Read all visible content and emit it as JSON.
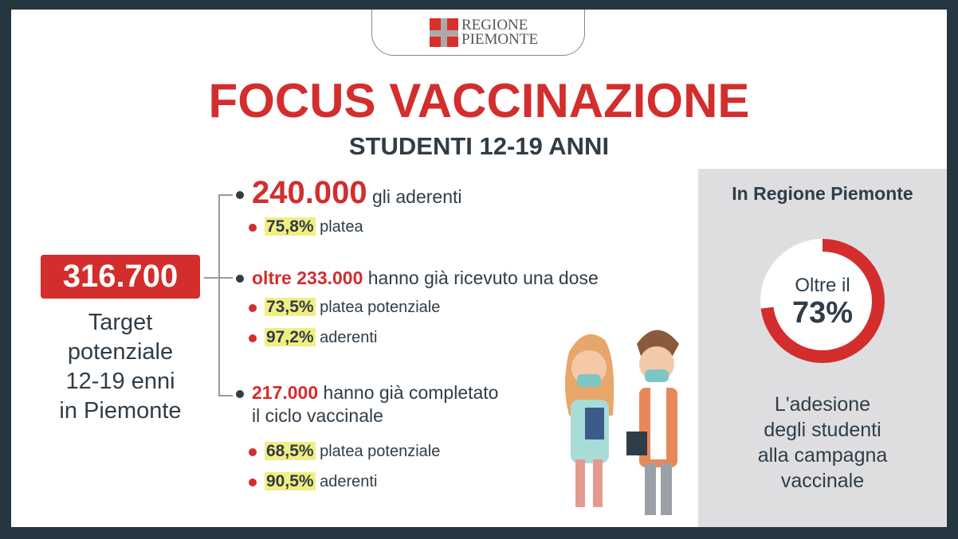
{
  "logo": {
    "line1": "REGIONE",
    "line2": "PIEMONTE"
  },
  "title": "FOCUS VACCINAZIONE",
  "subtitle": "STUDENTI 12-19 ANNI",
  "target": {
    "value": "316.700",
    "label": [
      "Target",
      "potenziale",
      "12-19 enni",
      "in Piemonte"
    ]
  },
  "items": [
    {
      "value": "240.000",
      "text": "gli aderenti",
      "stats": [
        {
          "pct": "75,8%",
          "label": "platea"
        }
      ]
    },
    {
      "value": "oltre 233.000",
      "text": "hanno già ricevuto una dose",
      "stats": [
        {
          "pct": "73,5%",
          "label": "platea potenziale"
        },
        {
          "pct": "97,2%",
          "label": "aderenti"
        }
      ]
    },
    {
      "value": "217.000",
      "text": "hanno già completato",
      "text2": "il ciclo vaccinale",
      "stats": [
        {
          "pct": "68,5%",
          "label": "platea potenziale"
        },
        {
          "pct": "90,5%",
          "label": "aderenti"
        }
      ]
    }
  ],
  "panel": {
    "title": "In Regione Piemonte",
    "donut_prefix": "Oltre il",
    "donut_value": "73%",
    "donut_fraction": 0.73,
    "caption": [
      "L'adesione",
      "degli studenti",
      "alla campagna",
      "vaccinale"
    ]
  },
  "colors": {
    "accent": "#d32d2d",
    "dark": "#2f3d48",
    "highlight": "#f3ee82",
    "panel": "#dedee1"
  }
}
